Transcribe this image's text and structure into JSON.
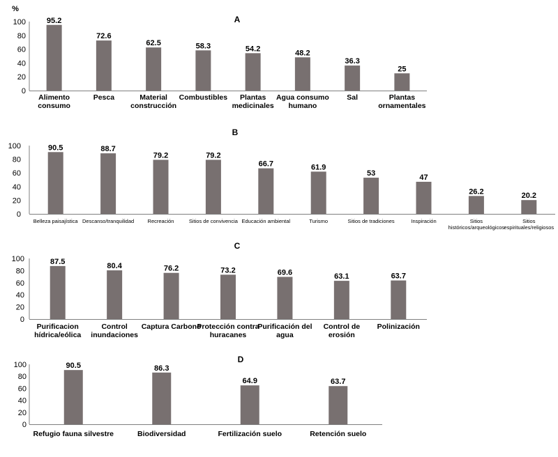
{
  "chart_data": [
    {
      "type": "bar",
      "title": "A",
      "ylabel": "%",
      "ylim": [
        0,
        100
      ],
      "yticks": [
        "0",
        "20",
        "40",
        "60",
        "80",
        "100"
      ],
      "categories": [
        [
          "Alimento",
          "consumo"
        ],
        [
          "Pesca"
        ],
        [
          "Material",
          "construcción"
        ],
        [
          "Combustibles"
        ],
        [
          "Plantas",
          "medicinales"
        ],
        [
          "Agua consumo",
          "humano"
        ],
        [
          "Sal"
        ],
        [
          "Plantas",
          "ornamentales"
        ]
      ],
      "values": [
        95.2,
        72.6,
        62.5,
        58.3,
        54.2,
        48.2,
        36.3,
        25
      ],
      "value_labels": [
        "95.2",
        "72.6",
        "62.5",
        "58.3",
        "54.2",
        "48.2",
        "36.3",
        "25"
      ],
      "grid": false
    },
    {
      "type": "bar",
      "title": "B",
      "ylabel": "",
      "ylim": [
        0,
        100
      ],
      "yticks": [
        "0",
        "20",
        "40",
        "60",
        "80",
        "100"
      ],
      "categories": [
        [
          "Belleza paisajística"
        ],
        [
          "Descanso/tranquilidad"
        ],
        [
          "Recreación"
        ],
        [
          "Sitios de convivencia"
        ],
        [
          "Educación ambiental"
        ],
        [
          "Turismo"
        ],
        [
          "Sitios de tradiciones"
        ],
        [
          "Inspiración"
        ],
        [
          "Sitios",
          "históricos/arqueológicos"
        ],
        [
          "Sitios",
          "espirituales/religiosos"
        ]
      ],
      "values": [
        90.5,
        88.7,
        79.2,
        79.2,
        66.7,
        61.9,
        53,
        47,
        26.2,
        20.2
      ],
      "value_labels": [
        "90.5",
        "88.7",
        "79.2",
        "79.2",
        "66.7",
        "61.9",
        "53",
        "47",
        "26.2",
        "20.2"
      ],
      "grid": false
    },
    {
      "type": "bar",
      "title": "C",
      "ylabel": "",
      "ylim": [
        0,
        100
      ],
      "yticks": [
        "0",
        "20",
        "40",
        "60",
        "80",
        "100"
      ],
      "categories": [
        [
          "Purificacion",
          "hídrica/eólica"
        ],
        [
          "Control",
          "inundaciones"
        ],
        [
          "Captura Carbono"
        ],
        [
          "Protección contra",
          "huracanes"
        ],
        [
          "Purificación del",
          "agua"
        ],
        [
          "Control de",
          "erosión"
        ],
        [
          "Polinización"
        ]
      ],
      "values": [
        87.5,
        80.4,
        76.2,
        73.2,
        69.6,
        63.1,
        63.7
      ],
      "value_labels": [
        "87.5",
        "80.4",
        "76.2",
        "73.2",
        "69.6",
        "63.1",
        "63.7"
      ],
      "grid": false
    },
    {
      "type": "bar",
      "title": "D",
      "ylabel": "",
      "ylim": [
        0,
        100
      ],
      "yticks": [
        "0",
        "20",
        "40",
        "60",
        "80",
        "100"
      ],
      "categories": [
        [
          "Refugio fauna silvestre"
        ],
        [
          "Biodiversidad"
        ],
        [
          "Fertilización suelo"
        ],
        [
          "Retención suelo"
        ]
      ],
      "values": [
        90.5,
        86.3,
        64.9,
        63.7
      ],
      "value_labels": [
        "90.5",
        "86.3",
        "64.9",
        "63.7"
      ],
      "grid": false
    }
  ],
  "colors": {
    "bar": "#787070",
    "axis": "#7f7f7f"
  }
}
